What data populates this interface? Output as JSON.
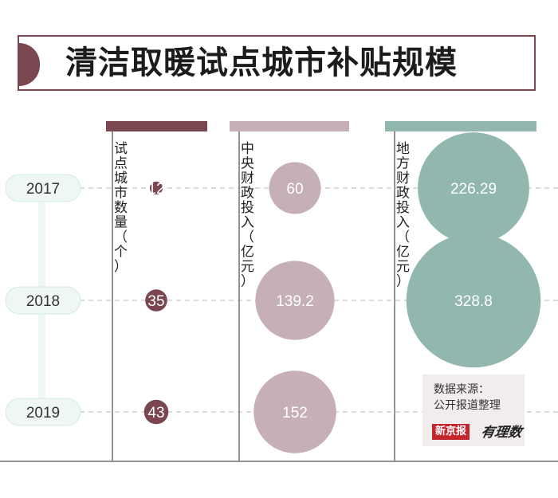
{
  "title": "清洁取暖试点城市补贴规模",
  "colors": {
    "cities": "#7a4650",
    "central": "#c6afb5",
    "local": "#91b7ae",
    "year_pill": "#eef7f4",
    "year_pill_border": "#d3ebe3",
    "axis": "#707070"
  },
  "chart_data": {
    "type": "bubble",
    "title": "清洁取暖试点城市补贴规模",
    "categories": [
      "2017",
      "2018",
      "2019"
    ],
    "series": [
      {
        "name": "试点城市数量（个）",
        "values": [
          12,
          35,
          43
        ],
        "labels": [
          "12",
          "35",
          "43"
        ]
      },
      {
        "name": "中央财政投入（亿元）",
        "values": [
          60,
          139.2,
          152
        ],
        "labels": [
          "60",
          "139.2",
          "152"
        ]
      },
      {
        "name": "地方财政投入（亿元）",
        "values": [
          226.29,
          328.8,
          null
        ],
        "labels": [
          "226.29",
          "328.8",
          ""
        ]
      }
    ]
  },
  "source": {
    "line1": "数据来源：",
    "line2": "公开报道整理",
    "logo_main": "新京报",
    "logo_script": "有理数"
  }
}
